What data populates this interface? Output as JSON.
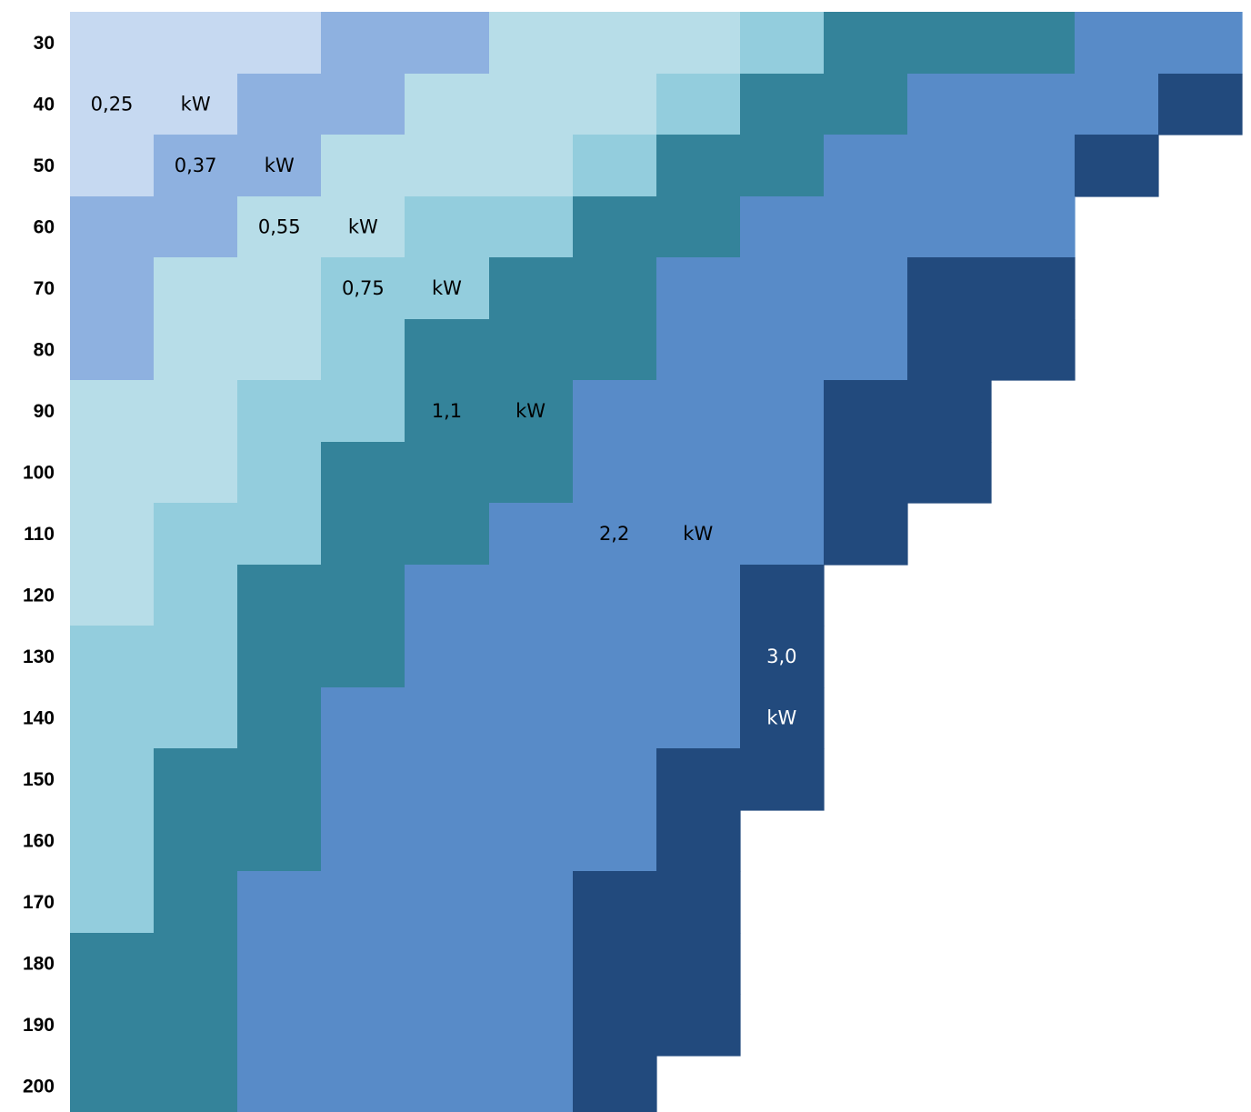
{
  "chart_data": {
    "type": "heatmap",
    "title": "",
    "xlabel": "",
    "ylabel": "",
    "rows": [
      "30",
      "40",
      "50",
      "60",
      "70",
      "80",
      "90",
      "100",
      "110",
      "120",
      "130",
      "140",
      "150",
      "160",
      "170",
      "180",
      "190",
      "200"
    ],
    "column_count": 14,
    "levels": [
      {
        "id": 0,
        "value": 0.25,
        "unit": "kW",
        "color": "#C6D9F1"
      },
      {
        "id": 1,
        "value": 0.37,
        "unit": "kW",
        "color": "#8EB1E0"
      },
      {
        "id": 2,
        "value": 0.55,
        "unit": "kW",
        "color": "#B7DDE8"
      },
      {
        "id": 3,
        "value": 0.75,
        "unit": "kW",
        "color": "#93CDDD"
      },
      {
        "id": 4,
        "value": 1.1,
        "unit": "kW",
        "color": "#34839A"
      },
      {
        "id": 5,
        "value": 2.2,
        "unit": "kW",
        "color": "#588BC8"
      },
      {
        "id": 6,
        "value": 3.0,
        "unit": "kW",
        "color": "#224A7D"
      }
    ],
    "cells": [
      [
        0,
        0,
        0,
        1,
        1,
        2,
        2,
        2,
        3,
        4,
        4,
        4,
        5,
        5
      ],
      [
        0,
        0,
        1,
        1,
        2,
        2,
        2,
        3,
        4,
        4,
        5,
        5,
        5,
        6
      ],
      [
        0,
        1,
        1,
        2,
        2,
        2,
        3,
        4,
        4,
        5,
        5,
        5,
        6,
        -1
      ],
      [
        1,
        1,
        2,
        2,
        3,
        3,
        4,
        4,
        5,
        5,
        5,
        5,
        -1,
        -1
      ],
      [
        1,
        2,
        2,
        3,
        3,
        4,
        4,
        5,
        5,
        5,
        6,
        6,
        -1,
        -1
      ],
      [
        1,
        2,
        2,
        3,
        4,
        4,
        4,
        5,
        5,
        5,
        6,
        6,
        -1,
        -1
      ],
      [
        2,
        2,
        3,
        3,
        4,
        4,
        5,
        5,
        5,
        6,
        6,
        -1,
        -1,
        -1
      ],
      [
        2,
        2,
        3,
        4,
        4,
        4,
        5,
        5,
        5,
        6,
        6,
        -1,
        -1,
        -1
      ],
      [
        2,
        3,
        3,
        4,
        4,
        5,
        5,
        5,
        5,
        6,
        -1,
        -1,
        -1,
        -1
      ],
      [
        2,
        3,
        4,
        4,
        5,
        5,
        5,
        5,
        6,
        -1,
        -1,
        -1,
        -1,
        -1
      ],
      [
        3,
        3,
        4,
        4,
        5,
        5,
        5,
        5,
        6,
        -1,
        -1,
        -1,
        -1,
        -1
      ],
      [
        3,
        3,
        4,
        5,
        5,
        5,
        5,
        5,
        6,
        -1,
        -1,
        -1,
        -1,
        -1
      ],
      [
        3,
        4,
        4,
        5,
        5,
        5,
        5,
        6,
        6,
        -1,
        -1,
        -1,
        -1,
        -1
      ],
      [
        3,
        4,
        4,
        5,
        5,
        5,
        5,
        6,
        -1,
        -1,
        -1,
        -1,
        -1,
        -1
      ],
      [
        3,
        4,
        5,
        5,
        5,
        5,
        6,
        6,
        -1,
        -1,
        -1,
        -1,
        -1,
        -1
      ],
      [
        4,
        4,
        5,
        5,
        5,
        5,
        6,
        6,
        -1,
        -1,
        -1,
        -1,
        -1,
        -1
      ],
      [
        4,
        4,
        5,
        5,
        5,
        5,
        6,
        6,
        -1,
        -1,
        -1,
        -1,
        -1,
        -1
      ],
      [
        4,
        4,
        5,
        5,
        5,
        5,
        6,
        -1,
        -1,
        -1,
        -1,
        -1,
        -1,
        -1
      ]
    ],
    "annotations": [
      {
        "text": "0,25",
        "row": 1,
        "col": 0,
        "color": "#000000"
      },
      {
        "text": "kW",
        "row": 1,
        "col": 1,
        "color": "#000000"
      },
      {
        "text": "0,37",
        "row": 2,
        "col": 1,
        "color": "#000000"
      },
      {
        "text": "kW",
        "row": 2,
        "col": 2,
        "color": "#000000"
      },
      {
        "text": "0,55",
        "row": 3,
        "col": 2,
        "color": "#000000"
      },
      {
        "text": "kW",
        "row": 3,
        "col": 3,
        "color": "#000000"
      },
      {
        "text": "0,75",
        "row": 4,
        "col": 3,
        "color": "#000000"
      },
      {
        "text": "kW",
        "row": 4,
        "col": 4,
        "color": "#000000"
      },
      {
        "text": "1,1",
        "row": 6,
        "col": 4,
        "color": "#000000"
      },
      {
        "text": "kW",
        "row": 6,
        "col": 5,
        "color": "#000000"
      },
      {
        "text": "2,2",
        "row": 8,
        "col": 6,
        "color": "#000000"
      },
      {
        "text": "kW",
        "row": 8,
        "col": 7,
        "color": "#000000"
      },
      {
        "text": "3,0",
        "row": 10,
        "col": 8,
        "color": "#FFFFFF"
      },
      {
        "text": "kW",
        "row": 11,
        "col": 8,
        "color": "#FFFFFF"
      }
    ],
    "grid": false,
    "legend": "none"
  }
}
